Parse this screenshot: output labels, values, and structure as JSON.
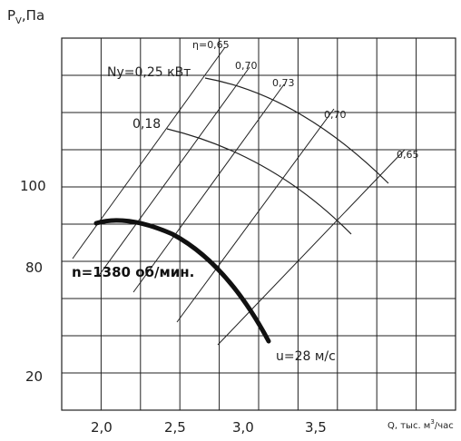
{
  "chart_data": {
    "type": "line",
    "ylabel": "P",
    "ylabel_sub": "V",
    "ylabel_unit": ",Па",
    "xlabel": "Q, тыс. м",
    "xlabel_sup": "3",
    "xlabel_unit": "/час",
    "x_ticks": [
      "2,0",
      "2,5",
      "3,0",
      "3,5"
    ],
    "y_ticks": [
      "100",
      "80",
      "20"
    ],
    "series": [
      {
        "name": "n=1380 об/мин.",
        "style": "bold",
        "points": [
          [
            1.95,
            112
          ],
          [
            2.05,
            113
          ],
          [
            2.2,
            110
          ],
          [
            2.4,
            102
          ],
          [
            2.6,
            90
          ],
          [
            2.8,
            75
          ],
          [
            3.0,
            55
          ],
          [
            3.1,
            42
          ],
          [
            3.15,
            35
          ]
        ]
      },
      {
        "name": "Ny=0,25 кВт",
        "style": "thin",
        "points": [
          [
            2.75,
            152
          ],
          [
            3.0,
            150
          ],
          [
            3.25,
            145
          ],
          [
            3.55,
            135
          ],
          [
            3.85,
            122
          ],
          [
            4.15,
            102
          ]
        ]
      },
      {
        "name": "0,18",
        "style": "thin",
        "points": [
          [
            2.4,
            135
          ],
          [
            2.8,
            132
          ],
          [
            3.2,
            125
          ],
          [
            3.55,
            115
          ],
          [
            3.8,
            104
          ],
          [
            4.05,
            90
          ]
        ]
      }
    ],
    "efficiency_lines": [
      {
        "label": "η=0,65",
        "from": [
          1.9,
          70
        ],
        "to": [
          2.9,
          165
        ]
      },
      {
        "label": "0,70",
        "from": [
          2.0,
          55
        ],
        "to": [
          3.25,
          162
        ]
      },
      {
        "label": "0,73",
        "from": [
          2.3,
          48
        ],
        "to": [
          3.55,
          155
        ]
      },
      {
        "label": "0,70",
        "from": [
          2.6,
          40
        ],
        "to": [
          4.0,
          143
        ]
      },
      {
        "label": "0,65",
        "from": [
          2.9,
          35
        ],
        "to": [
          4.3,
          126
        ]
      }
    ],
    "annotations": {
      "speed": "n=1380 об/мин.",
      "velocity": "u=28 м/с",
      "power_high": "Ny=0,25 кВт",
      "power_low": "0,18"
    },
    "grid": true
  }
}
